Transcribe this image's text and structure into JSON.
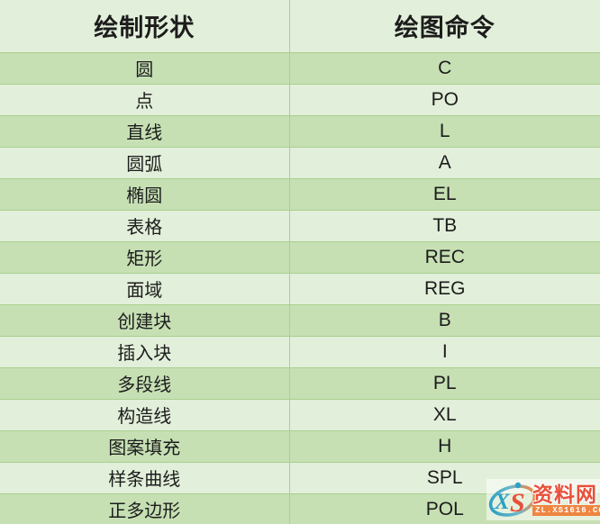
{
  "table": {
    "columns": [
      {
        "label": "绘制形状"
      },
      {
        "label": "绘图命令"
      }
    ],
    "rows": [
      {
        "shape": "圆",
        "command": "C"
      },
      {
        "shape": "点",
        "command": "PO"
      },
      {
        "shape": "直线",
        "command": "L"
      },
      {
        "shape": "圆弧",
        "command": "A"
      },
      {
        "shape": "椭圆",
        "command": "EL"
      },
      {
        "shape": "表格",
        "command": "TB"
      },
      {
        "shape": "矩形",
        "command": "REC"
      },
      {
        "shape": "面域",
        "command": "REG"
      },
      {
        "shape": "创建块",
        "command": "B"
      },
      {
        "shape": "插入块",
        "command": "I"
      },
      {
        "shape": "多段线",
        "command": "PL"
      },
      {
        "shape": "构造线",
        "command": "XL"
      },
      {
        "shape": "图案填充",
        "command": "H"
      },
      {
        "shape": "样条曲线",
        "command": "SPL"
      },
      {
        "shape": "正多边形",
        "command": "POL"
      }
    ]
  },
  "colors": {
    "row_dark": "#c6e0b4",
    "row_light": "#e2efda",
    "grid": "#a9d08e",
    "text": "#1c1c1c",
    "watermark_red": "#e8503a",
    "watermark_teal": "#2f9fc4",
    "watermark_orange": "#ef8540"
  },
  "watermark": {
    "logo_letters": "XS",
    "logo_letter_x": "X",
    "logo_letter_s": "S",
    "site_name": "资料网",
    "site_url": "ZL.XS1616.COM"
  }
}
